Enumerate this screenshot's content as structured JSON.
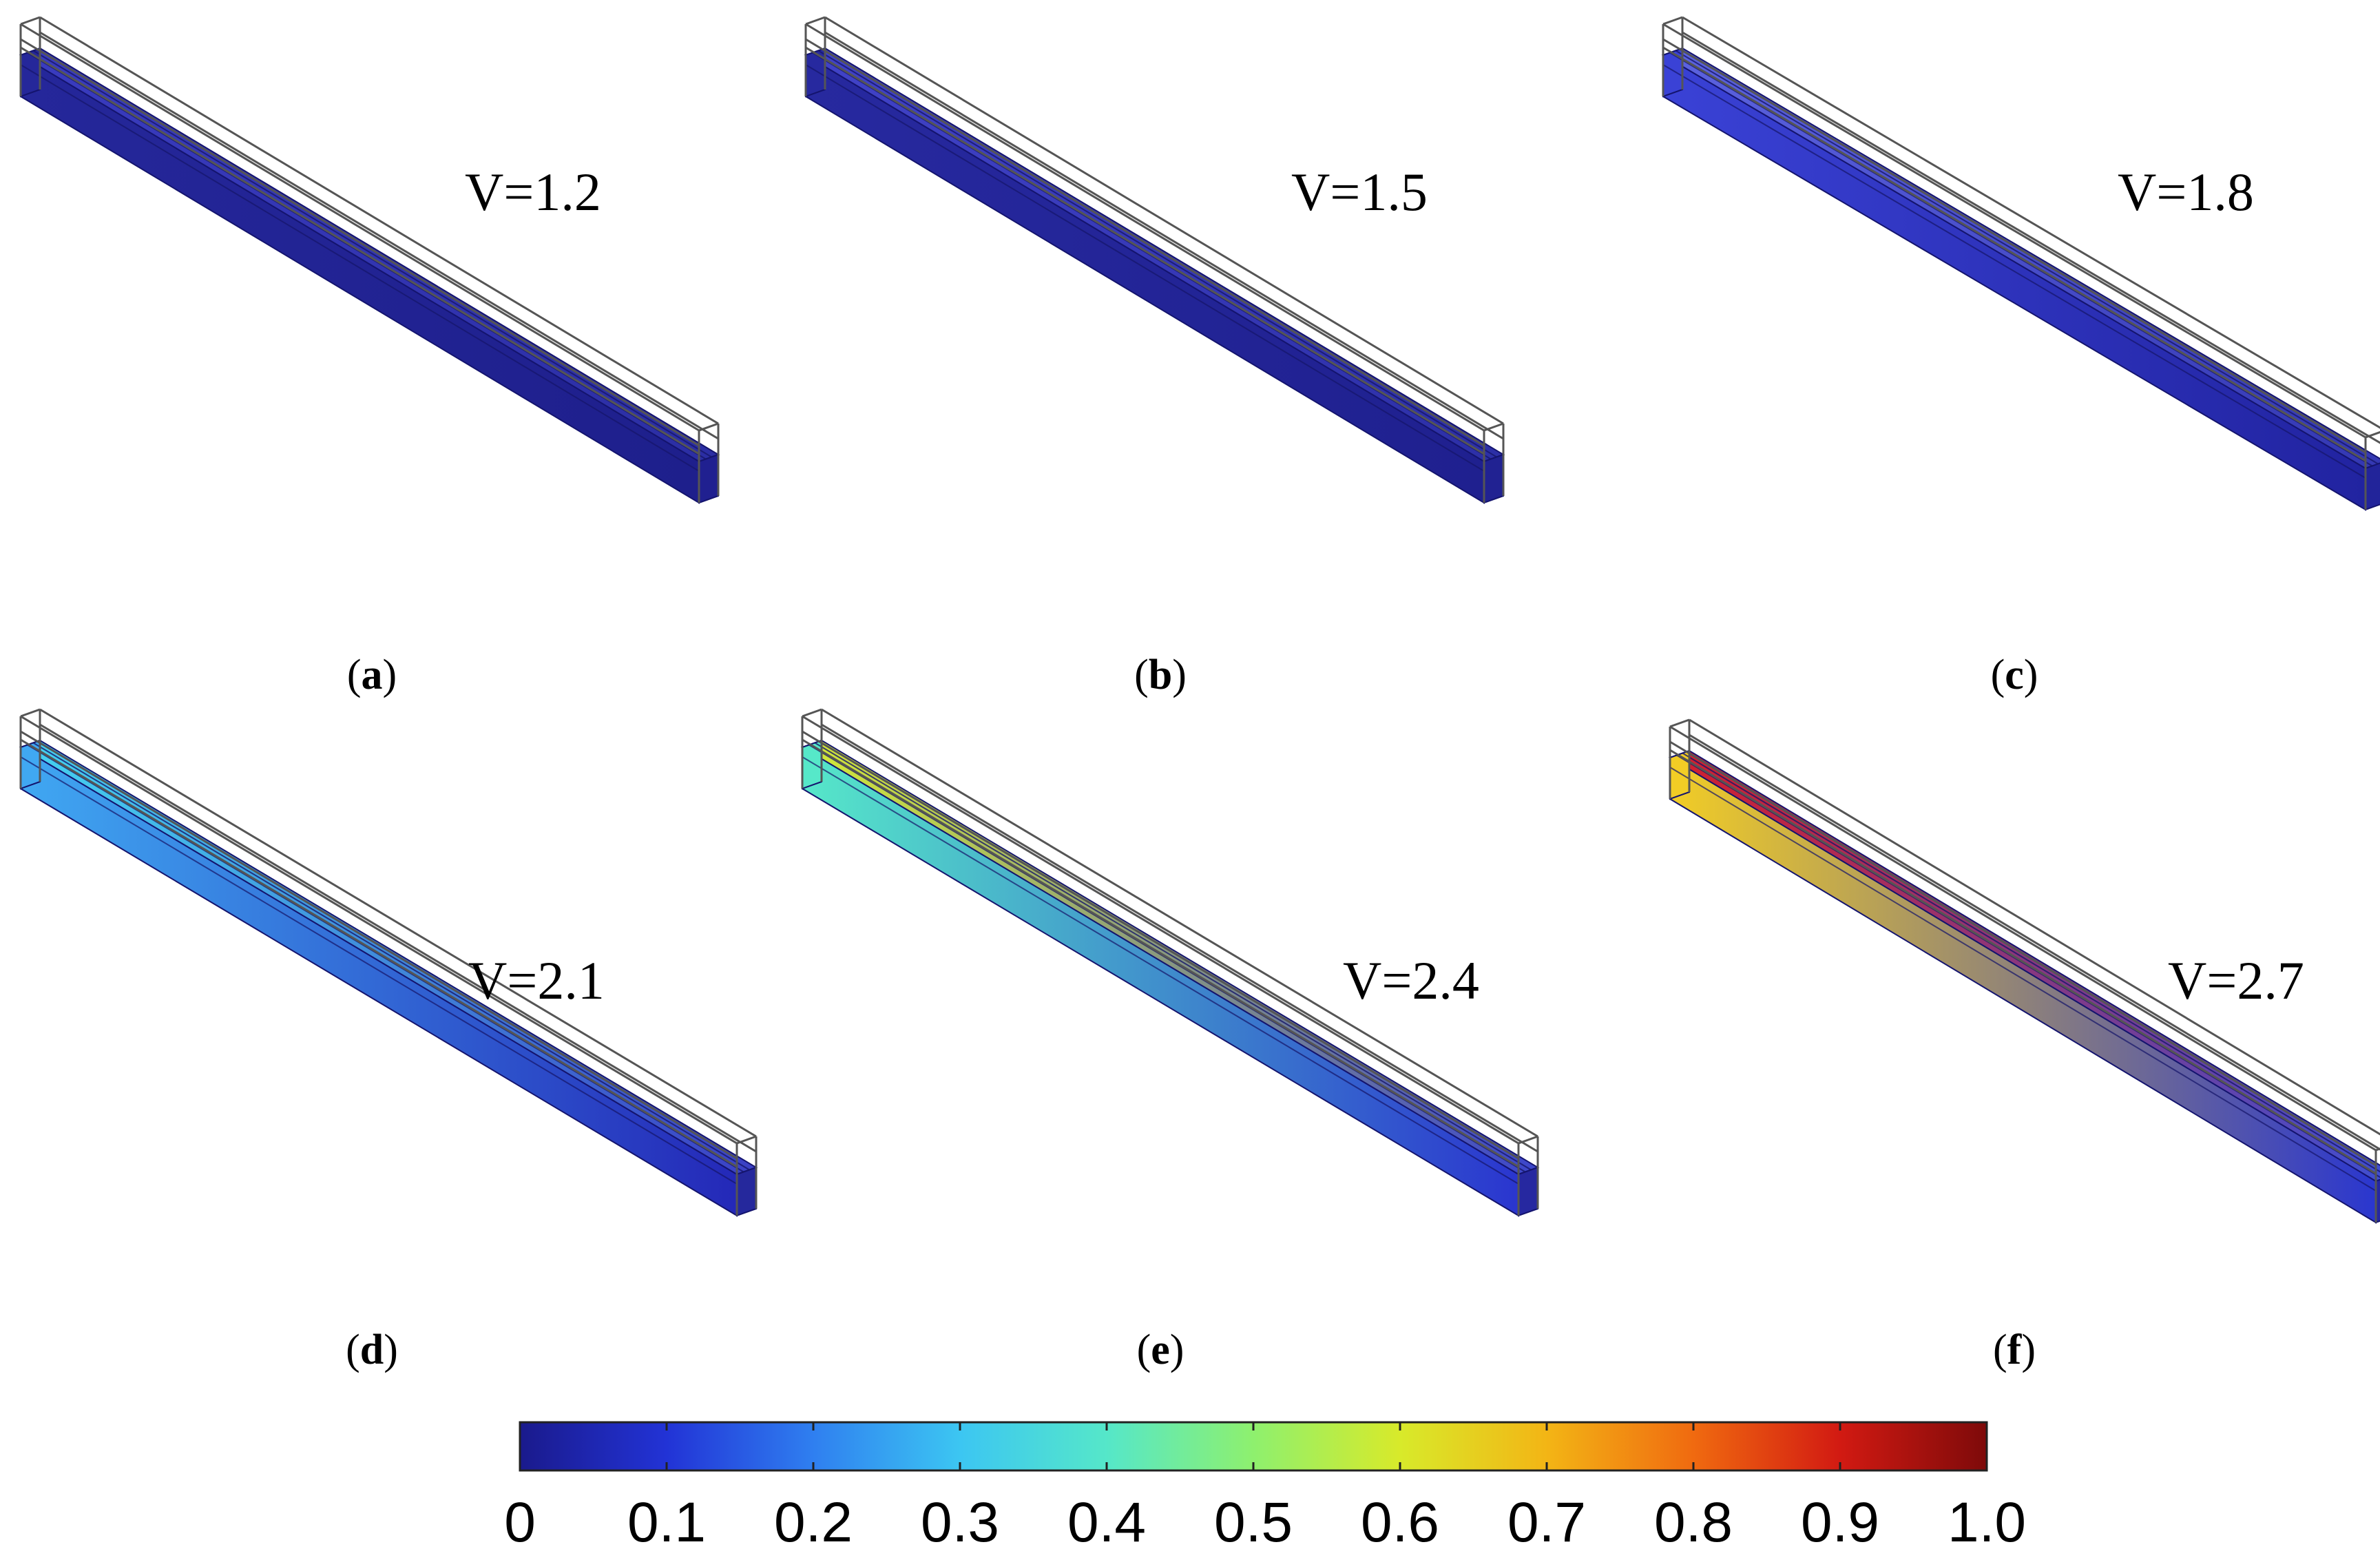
{
  "panels": [
    {
      "id": "a",
      "caption_open": "(",
      "caption_letter": "a",
      "caption_close": ")",
      "label": "V=1.2",
      "field": "a"
    },
    {
      "id": "b",
      "caption_open": "(",
      "caption_letter": "b",
      "caption_close": ")",
      "label": "V=1.5",
      "field": "b"
    },
    {
      "id": "c",
      "caption_open": "(",
      "caption_letter": "c",
      "caption_close": ")",
      "label": "V=1.8",
      "field": "c"
    },
    {
      "id": "d",
      "caption_open": "(",
      "caption_letter": "d",
      "caption_close": ")",
      "label": "V=2.1",
      "field": "d"
    },
    {
      "id": "e",
      "caption_open": "(",
      "caption_letter": "e",
      "caption_close": ")",
      "label": "V=2.4",
      "field": "e"
    },
    {
      "id": "f",
      "caption_open": "(",
      "caption_letter": "f",
      "caption_close": ")",
      "label": "V=2.7",
      "field": "f"
    }
  ],
  "colorbar": {
    "ticks": [
      "0",
      "0.1",
      "0.2",
      "0.3",
      "0.4",
      "0.5",
      "0.6",
      "0.7",
      "0.8",
      "0.9",
      "1.0"
    ],
    "min": 0,
    "max": 1.0,
    "colormap": [
      "#1a1a8c",
      "#2233d6",
      "#2f7ff0",
      "#3cc6f2",
      "#55e7c9",
      "#8ef06e",
      "#d8ea2a",
      "#f3b515",
      "#f06a10",
      "#d21a12",
      "#7e0a0a"
    ]
  },
  "colors": {
    "frame": "#555555",
    "a": {
      "top_start": "#3a3cbf",
      "top_end": "#2b2ea3",
      "front_start": "#25279a",
      "front_end": "#1e1f8c",
      "side": "#202090"
    },
    "b": {
      "top_start": "#4143c8",
      "top_end": "#2c2fa6",
      "front_start": "#27299f",
      "front_end": "#1f208f",
      "side": "#212292"
    },
    "c": {
      "top_start": "#5c63df",
      "top_end": "#3337b2",
      "front_start": "#3a42d6",
      "front_end": "#2123a0",
      "side": "#22249a"
    },
    "d": {
      "top_start": "#45d4f0",
      "top_end": "#3b3fc4",
      "front_start": "#40a8f2",
      "front_end": "#2428b8",
      "side": "#25289c"
    },
    "e": {
      "top_start": "#d5ea35",
      "top_end": "#3b45cc",
      "front_start": "#56e8c9",
      "front_end": "#2a35cf",
      "side": "#2628a0"
    },
    "f": {
      "top_start": "#d2202c",
      "top_end": "#3d4fd3",
      "front_start": "#f2cd25",
      "front_end": "#2a36cf",
      "side": "#2628a0"
    }
  }
}
